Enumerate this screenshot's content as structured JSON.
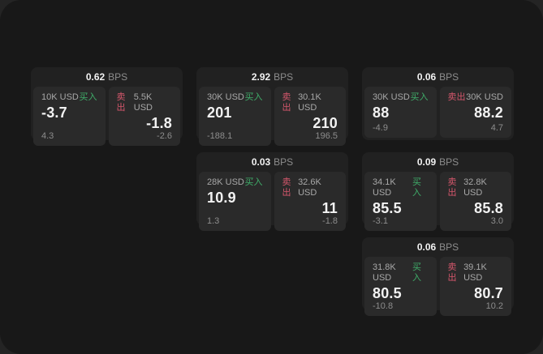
{
  "colors": {
    "outer_bg": "#242424",
    "window_bg": "#181818",
    "card_bg": "#212121",
    "panel_bg": "#2a2a2a",
    "buy_green": "#3fae6a",
    "sell_red": "#d5576c",
    "label_gray": "#a8a8a8",
    "muted_gray": "#8d8d8d",
    "value_white": "#f2f2f2"
  },
  "labels": {
    "buy": "买入",
    "sell": "卖出",
    "bps_unit": "BPS"
  },
  "cards": [
    {
      "bps": "0.62",
      "buy": {
        "size": "10K USD",
        "value": "-3.7",
        "sub": "4.3"
      },
      "sell": {
        "size": "5.5K USD",
        "value": "-1.8",
        "sub": "-2.6"
      }
    },
    {
      "bps": "2.92",
      "buy": {
        "size": "30K USD",
        "value": "201",
        "sub": "-188.1"
      },
      "sell": {
        "size": "30.1K USD",
        "value": "210",
        "sub": "196.5"
      }
    },
    {
      "bps": "0.06",
      "buy": {
        "size": "30K USD",
        "value": "88",
        "sub": "-4.9"
      },
      "sell": {
        "size": "30K USD",
        "value": "88.2",
        "sub": "4.7"
      }
    },
    {
      "bps": "0.03",
      "buy": {
        "size": "28K USD",
        "value": "10.9",
        "sub": "1.3"
      },
      "sell": {
        "size": "32.6K USD",
        "value": "11",
        "sub": "-1.8"
      }
    },
    {
      "bps": "0.09",
      "buy": {
        "size": "34.1K USD",
        "value": "85.5",
        "sub": "-3.1"
      },
      "sell": {
        "size": "32.8K USD",
        "value": "85.8",
        "sub": "3.0"
      }
    },
    {
      "bps": "0.06",
      "buy": {
        "size": "31.8K USD",
        "value": "80.5",
        "sub": "-10.8"
      },
      "sell": {
        "size": "39.1K USD",
        "value": "80.7",
        "sub": "10.2"
      }
    }
  ]
}
